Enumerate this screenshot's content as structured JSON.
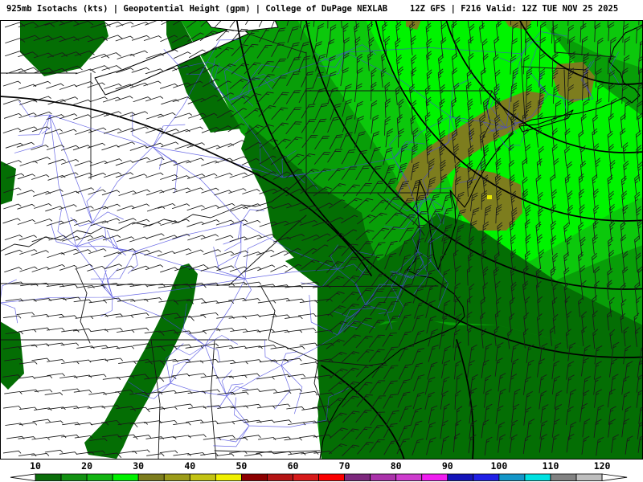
{
  "header": {
    "product_title": "925mb Isotachs (kts) | Geopotential Height (gpm) | College of DuPage NEXLAB",
    "run_info": "12Z GFS | F216 Valid: 12Z TUE NOV 25 2025",
    "model": "GFS",
    "run": "12Z",
    "forecast_hour": "F216",
    "valid_time": "12Z TUE NOV 25 2025",
    "source": "College of DuPage NEXLAB",
    "field_1": "925mb Isotachs (kts)",
    "field_2": "Geopotential Height (gpm)"
  },
  "colorbar": {
    "tick_labels": [
      "10",
      "20",
      "30",
      "40",
      "50",
      "60",
      "70",
      "80",
      "90",
      "100",
      "110",
      "120"
    ],
    "range_kts": [
      10,
      120
    ],
    "segment_width_kts": 5,
    "segment_colors": [
      "#0a6e0a",
      "#129112",
      "#12b412",
      "#00f000",
      "#7d7d1e",
      "#9b9b19",
      "#c3c314",
      "#f0f000",
      "#8c0000",
      "#b41414",
      "#d71a1a",
      "#fa0000",
      "#7d287d",
      "#aa32aa",
      "#cd3ccd",
      "#f01ef0",
      "#1414b9",
      "#2020e6",
      "#1496c8",
      "#00e1e1",
      "#828282",
      "#bebebe"
    ],
    "arrow_fill": "#ffffff",
    "outline": "#000000"
  },
  "map": {
    "palette": {
      "below10": "#ffffff",
      "g1_10_15": "#046e04",
      "g2_15_20": "#089e08",
      "g3_20_25": "#0cc80c",
      "g4_25_30": "#00f400",
      "olive_30_35": "#7d7d1e",
      "yellow_40_45": "#e8e800"
    },
    "line_colors": {
      "height_contour": "#000000",
      "state_border": "#141414",
      "coastline": "#000000",
      "road": "#4646df",
      "wind_barb": "#1a1a1a",
      "lake_fill": "#ffffff",
      "frame": "#000000"
    }
  },
  "wind": {
    "barb_unit": "kts",
    "grid_dx": 17.5,
    "grid_dy": 19,
    "staff_len": 19,
    "speeds": {
      "land_west": 7,
      "land_sw": 6,
      "michigan": 12,
      "al_ga_ridge": 11,
      "green_base": 19,
      "west_green": 13,
      "bright_band": 27,
      "olive_max": 33,
      "mid_ocean_dark": 16,
      "south_ocean": 15,
      "se_corner": 13
    },
    "angles_deg_from_north": {
      "west": 72,
      "southwest": 82,
      "east": -6,
      "northeast": 2,
      "southeast": 7
    }
  }
}
